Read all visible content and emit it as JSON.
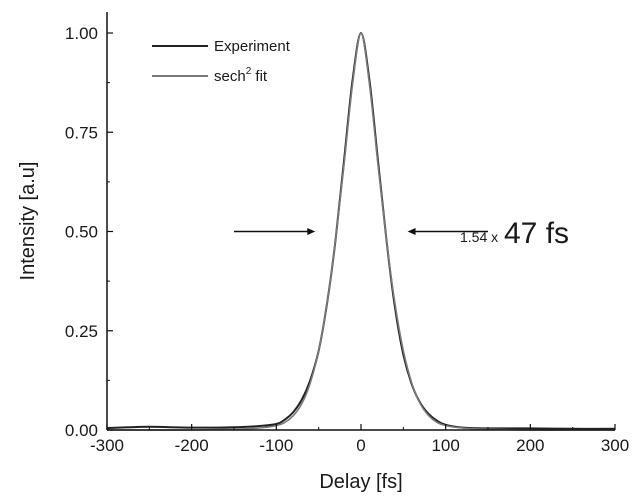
{
  "chart_data": {
    "type": "line",
    "xlabel": "Delay [fs]",
    "ylabel": "Intensity [a.u]",
    "xlim": [
      -300,
      300
    ],
    "ylim": [
      0,
      1.05
    ],
    "x_ticks": [
      -300,
      -200,
      -100,
      0,
      100,
      200,
      300
    ],
    "x_tick_labels": [
      "-300",
      "-200",
      "-100",
      "0",
      "100",
      "200",
      "300"
    ],
    "y_ticks": [
      0,
      0.25,
      0.5,
      0.75,
      1.0
    ],
    "y_tick_labels": [
      "0.00",
      "0.25",
      "0.50",
      "0.75",
      "1.00"
    ],
    "grid": false,
    "legend_position": "top-left",
    "series": [
      {
        "name": "Experiment",
        "color": "#222222",
        "x": [
          -300,
          -250,
          -200,
          -150,
          -120,
          -100,
          -90,
          -80,
          -70,
          -60,
          -50,
          -40,
          -30,
          -20,
          -10,
          0,
          10,
          20,
          30,
          40,
          50,
          60,
          70,
          80,
          90,
          100,
          120,
          150,
          200,
          250,
          300
        ],
        "y": [
          0.005,
          0.008,
          0.006,
          0.007,
          0.01,
          0.015,
          0.026,
          0.045,
          0.076,
          0.125,
          0.2,
          0.32,
          0.48,
          0.68,
          0.88,
          1.0,
          0.88,
          0.68,
          0.48,
          0.31,
          0.19,
          0.115,
          0.068,
          0.04,
          0.023,
          0.013,
          0.006,
          0.004,
          0.004,
          0.003,
          0.003
        ]
      },
      {
        "name": "sech² fit",
        "label_base": "sech",
        "label_sup": "2",
        "label_tail": " fit",
        "color": "#7a7a7a",
        "x": [
          -300,
          -250,
          -200,
          -150,
          -120,
          -100,
          -90,
          -80,
          -70,
          -60,
          -50,
          -40,
          -30,
          -20,
          -10,
          0,
          10,
          20,
          30,
          40,
          50,
          60,
          70,
          80,
          90,
          100,
          120,
          150,
          200,
          250,
          300
        ],
        "y": [
          0.0,
          0.0,
          0.0,
          0.002,
          0.005,
          0.011,
          0.019,
          0.036,
          0.066,
          0.118,
          0.2,
          0.32,
          0.48,
          0.67,
          0.87,
          1.0,
          0.87,
          0.67,
          0.48,
          0.32,
          0.2,
          0.118,
          0.066,
          0.036,
          0.019,
          0.011,
          0.005,
          0.002,
          0.0,
          0.0,
          0.0
        ]
      }
    ],
    "annotation": {
      "prefix": "1.54 x",
      "value": "47 fs",
      "y": 0.5,
      "left_arrow_from_x": -150,
      "left_arrow_to_x": -54,
      "right_arrow_from_x": 150,
      "right_arrow_to_x": 55
    }
  }
}
